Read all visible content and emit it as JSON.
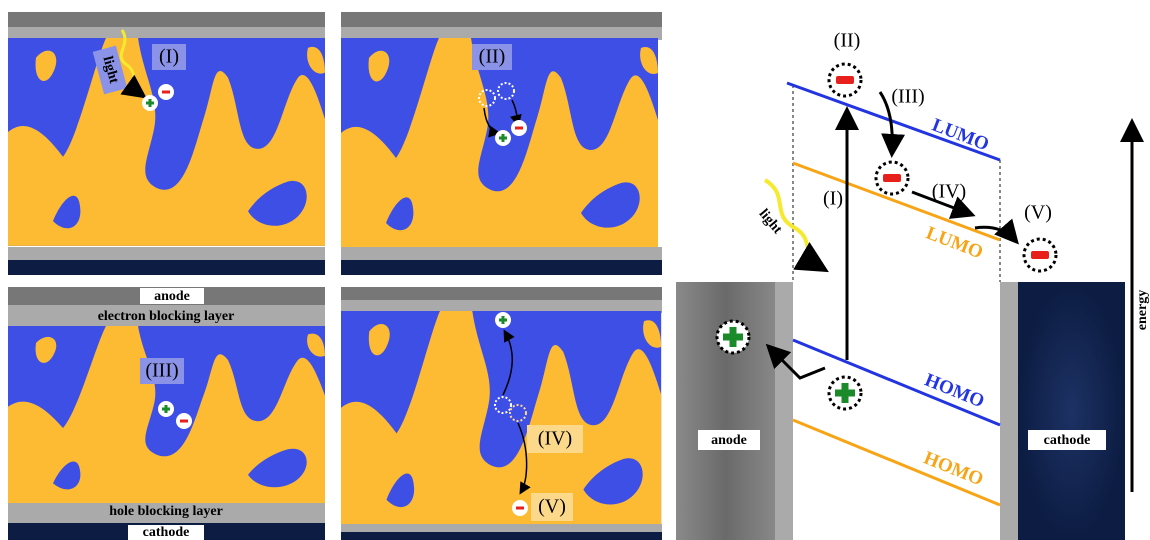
{
  "panels": [
    {
      "label": "(I)",
      "light": "light"
    },
    {
      "label": "(II)"
    },
    {
      "label": "(III)",
      "anode": "anode",
      "electron_blocking_layer": "electron blocking layer",
      "hole_blocking_layer": "hole blocking layer",
      "cathode": "cathode"
    },
    {
      "labels": [
        "(IV)",
        "(V)"
      ]
    }
  ],
  "energy_diagram": {
    "step_labels": [
      "(I)",
      "(II)",
      "(III)",
      "(IV)",
      "(V)"
    ],
    "light": "light",
    "lumo_labels": [
      "LUMO",
      "LUMO"
    ],
    "homo_labels": [
      "HOMO",
      "HOMO"
    ],
    "anode": "anode",
    "cathode": "cathode",
    "energy": "energy"
  }
}
